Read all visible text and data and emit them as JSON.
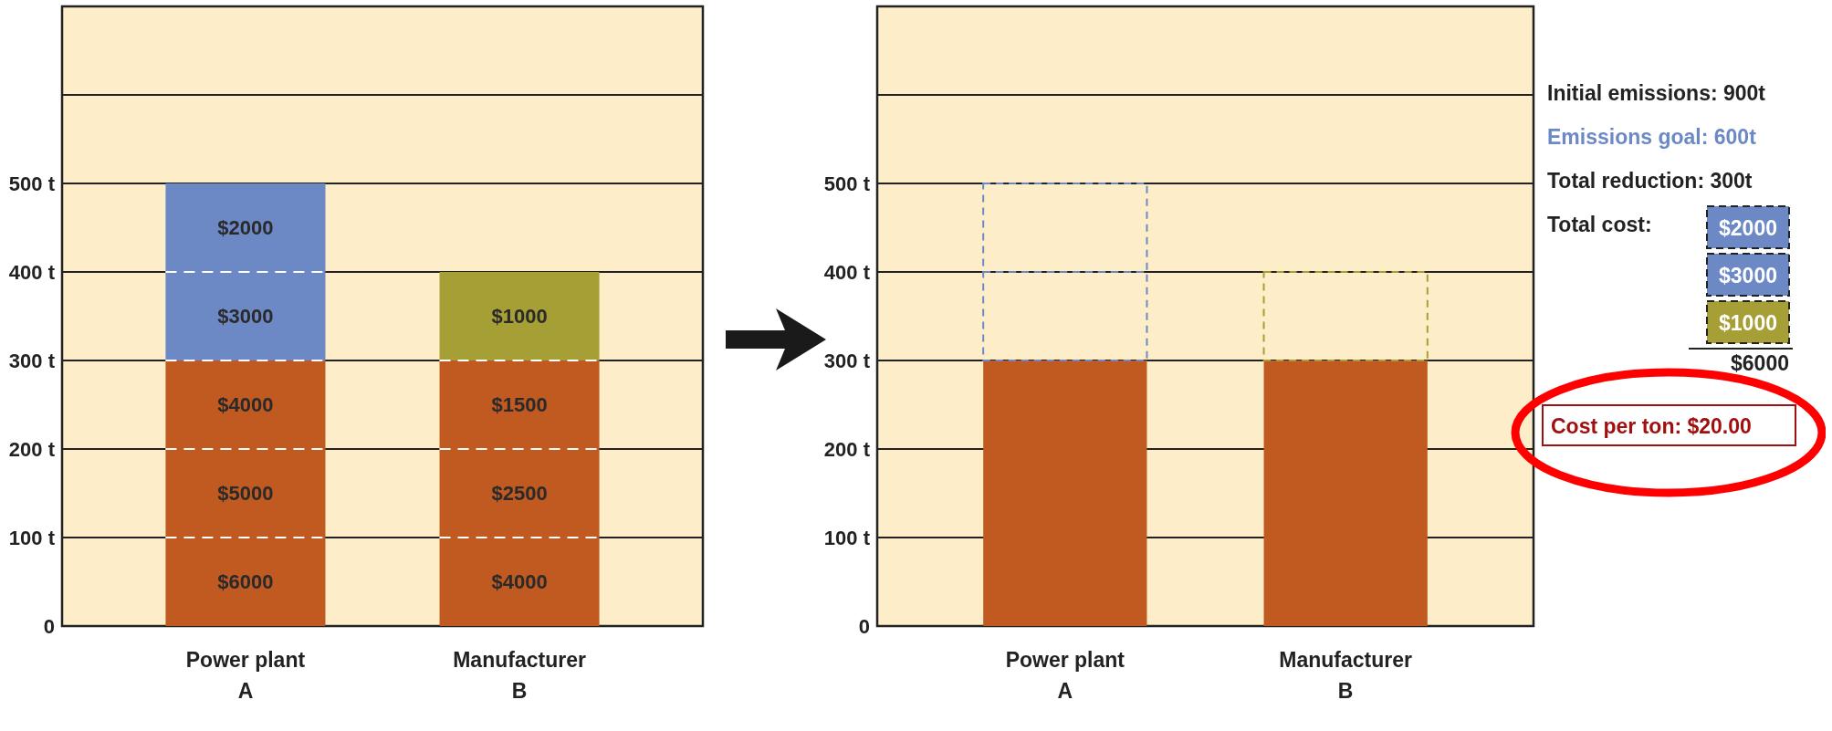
{
  "chart_data": [
    {
      "type": "bar",
      "stacked": true,
      "categories": [
        "Power plant\nA",
        "Manufacturer\nB"
      ],
      "ylim": [
        0,
        700
      ],
      "yticks": [
        0,
        {
          "value": 100,
          "label": "100 t"
        },
        {
          "value": 200,
          "label": "200 t"
        },
        {
          "value": 300,
          "label": "300 t"
        },
        {
          "value": 400,
          "label": "400 t"
        },
        {
          "value": 500,
          "label": "500 t"
        },
        {
          "value": 600,
          "label": null
        }
      ],
      "grid": "y",
      "series": [
        {
          "color": "#c05a20",
          "values": [
            100,
            100
          ]
        },
        {
          "color": "#c05a20",
          "values": [
            100,
            100
          ]
        },
        {
          "color": "#c05a20",
          "values": [
            100,
            100
          ]
        },
        {
          "colors": [
            "#6c89c6",
            "#a69f35"
          ],
          "values": [
            100,
            100
          ]
        },
        {
          "color": "#6c89c6",
          "values": [
            100,
            null
          ]
        }
      ],
      "annotations": [
        {
          "text": "$6000",
          "x": "Power plant\nA",
          "y": 100
        },
        {
          "text": "$5000",
          "x": "Power plant\nA",
          "y": 200
        },
        {
          "text": "$4000",
          "x": "Power plant\nA",
          "y": 300
        },
        {
          "text": "$3000",
          "x": "Power plant\nA",
          "y": 400
        },
        {
          "text": "$2000",
          "x": "Power plant\nA",
          "y": 500
        },
        {
          "text": "$4000",
          "x": "Manufacturer\nB",
          "y": 100
        },
        {
          "text": "$2500",
          "x": "Manufacturer\nB",
          "y": 200
        },
        {
          "text": "$1500",
          "x": "Manufacturer\nB",
          "y": 300
        },
        {
          "text": "$1000",
          "x": "Manufacturer\nB",
          "y": 400
        }
      ]
    },
    {
      "type": "bar",
      "stacked": true,
      "categories": [
        "Power plant\nA",
        "Manufacturer\nB"
      ],
      "ylim": [
        0,
        700
      ],
      "yticks": [
        0,
        {
          "value": 100,
          "label": "100 t"
        },
        {
          "value": 200,
          "label": "200 t"
        },
        {
          "value": 300,
          "label": "300 t"
        },
        {
          "value": 400,
          "label": "400 t"
        },
        {
          "value": 500,
          "label": "500 t"
        },
        {
          "value": 600,
          "label": null
        }
      ],
      "grid": "y",
      "series": [
        {
          "color": "#c05a20",
          "values": [
            300,
            300
          ]
        },
        {
          "colors": [
            "#6c89c6",
            "#a69f35"
          ],
          "values": [
            100,
            100
          ],
          "line_style": "dashed"
        },
        {
          "color": "#6c89c6",
          "values": [
            100,
            null
          ],
          "line_style": "dashed"
        }
      ],
      "annotations": [
        "Initial emissions: 900t",
        "Emissions goal: 600t",
        "Total reduction: 300t",
        "Total cost:",
        "$2000",
        "$3000",
        "$1000",
        "$6000",
        "Cost per ton: $20.00"
      ]
    }
  ]
}
